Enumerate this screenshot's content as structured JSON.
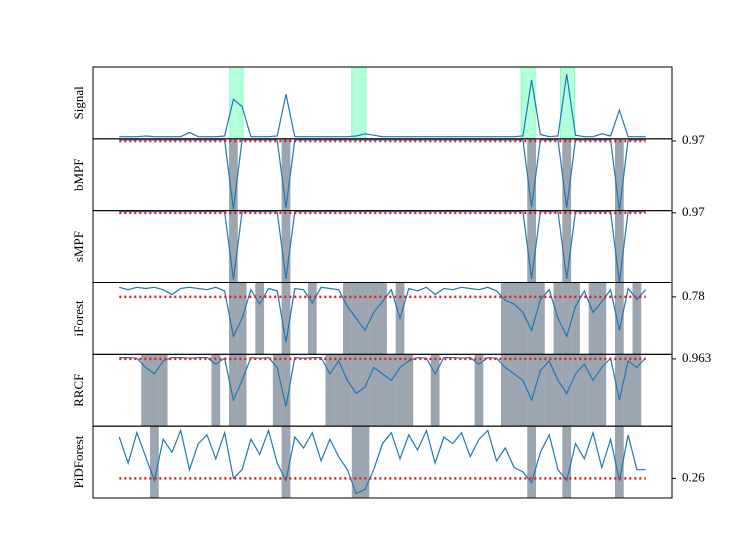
{
  "chart_data": [
    {
      "type": "line",
      "ylabel": "Signal",
      "color": "#1f77b4",
      "xlim": [
        -3,
        63
      ],
      "ylim": [
        0,
        1
      ],
      "yticks": [],
      "highlight_color": "#7fffc4",
      "highlight_spans": [
        [
          12.6,
          14.1
        ],
        [
          26.5,
          28.1
        ],
        [
          45.8,
          47.4
        ],
        [
          50.3,
          51.9
        ]
      ],
      "values": [
        0.03,
        0.03,
        0.03,
        0.04,
        0.03,
        0.03,
        0.03,
        0.03,
        0.09,
        0.03,
        0.03,
        0.03,
        0.04,
        0.55,
        0.45,
        0.03,
        0.03,
        0.03,
        0.04,
        0.62,
        0.03,
        0.03,
        0.03,
        0.03,
        0.03,
        0.03,
        0.03,
        0.04,
        0.07,
        0.05,
        0.03,
        0.03,
        0.03,
        0.03,
        0.03,
        0.03,
        0.03,
        0.03,
        0.03,
        0.03,
        0.03,
        0.03,
        0.03,
        0.03,
        0.03,
        0.03,
        0.04,
        0.82,
        0.06,
        0.03,
        0.04,
        0.9,
        0.05,
        0.03,
        0.03,
        0.07,
        0.04,
        0.4,
        0.03,
        0.03,
        0.03
      ]
    },
    {
      "type": "line",
      "ylabel": "bMPF",
      "color": "#1f77b4",
      "xlim": [
        -3,
        63
      ],
      "ylim": [
        0,
        1
      ],
      "yticks": [
        0.97
      ],
      "threshold_color": "#e41a1c",
      "shade_below_threshold": true,
      "values": [
        0.985,
        0.985,
        0.985,
        0.985,
        0.985,
        0.985,
        0.985,
        0.985,
        0.985,
        0.985,
        0.985,
        0.985,
        0.985,
        0.02,
        0.985,
        0.985,
        0.985,
        0.985,
        0.985,
        0.04,
        0.985,
        0.985,
        0.985,
        0.985,
        0.985,
        0.985,
        0.985,
        0.985,
        0.985,
        0.985,
        0.985,
        0.985,
        0.985,
        0.985,
        0.985,
        0.985,
        0.985,
        0.985,
        0.985,
        0.985,
        0.985,
        0.985,
        0.985,
        0.985,
        0.985,
        0.985,
        0.985,
        0.05,
        0.985,
        0.985,
        0.985,
        0.04,
        0.985,
        0.985,
        0.985,
        0.985,
        0.985,
        0.0,
        0.985,
        0.985,
        0.985
      ]
    },
    {
      "type": "line",
      "ylabel": "sMPF",
      "color": "#1f77b4",
      "xlim": [
        -3,
        63
      ],
      "ylim": [
        0,
        1
      ],
      "yticks": [
        0.97
      ],
      "threshold_color": "#e41a1c",
      "shade_below_threshold": true,
      "values": [
        0.985,
        0.985,
        0.985,
        0.985,
        0.985,
        0.985,
        0.985,
        0.985,
        0.985,
        0.985,
        0.985,
        0.985,
        0.985,
        0.04,
        0.985,
        0.985,
        0.985,
        0.985,
        0.985,
        0.05,
        0.985,
        0.985,
        0.985,
        0.985,
        0.985,
        0.985,
        0.985,
        0.985,
        0.985,
        0.985,
        0.985,
        0.985,
        0.985,
        0.985,
        0.985,
        0.985,
        0.985,
        0.985,
        0.985,
        0.985,
        0.985,
        0.985,
        0.985,
        0.985,
        0.985,
        0.985,
        0.985,
        0.05,
        0.985,
        0.985,
        0.985,
        0.05,
        0.985,
        0.985,
        0.985,
        0.985,
        0.985,
        0.0,
        0.985,
        0.985,
        0.985
      ]
    },
    {
      "type": "line",
      "ylabel": "iForest",
      "color": "#1f77b4",
      "xlim": [
        -3,
        63
      ],
      "ylim": [
        0.3,
        0.9
      ],
      "yticks": [
        0.78
      ],
      "threshold_color": "#e41a1c",
      "shade_below_threshold": true,
      "values": [
        0.86,
        0.84,
        0.86,
        0.85,
        0.86,
        0.84,
        0.8,
        0.85,
        0.86,
        0.85,
        0.84,
        0.86,
        0.83,
        0.45,
        0.6,
        0.84,
        0.72,
        0.85,
        0.83,
        0.4,
        0.85,
        0.84,
        0.73,
        0.86,
        0.85,
        0.84,
        0.7,
        0.6,
        0.5,
        0.65,
        0.74,
        0.84,
        0.6,
        0.85,
        0.83,
        0.86,
        0.8,
        0.85,
        0.84,
        0.86,
        0.85,
        0.84,
        0.86,
        0.83,
        0.75,
        0.72,
        0.65,
        0.5,
        0.76,
        0.84,
        0.6,
        0.45,
        0.7,
        0.83,
        0.65,
        0.74,
        0.84,
        0.5,
        0.85,
        0.76,
        0.84
      ]
    },
    {
      "type": "line",
      "ylabel": "RRCF",
      "color": "#1f77b4",
      "xlim": [
        -3,
        63
      ],
      "ylim": [
        0.86,
        0.97
      ],
      "yticks": [
        0.963
      ],
      "threshold_color": "#e41a1c",
      "shade_below_threshold": true,
      "values": [
        0.965,
        0.965,
        0.964,
        0.95,
        0.94,
        0.96,
        0.965,
        0.965,
        0.964,
        0.965,
        0.965,
        0.955,
        0.964,
        0.9,
        0.93,
        0.965,
        0.964,
        0.965,
        0.95,
        0.89,
        0.965,
        0.964,
        0.965,
        0.965,
        0.94,
        0.96,
        0.93,
        0.91,
        0.92,
        0.95,
        0.94,
        0.93,
        0.95,
        0.96,
        0.965,
        0.964,
        0.94,
        0.965,
        0.965,
        0.964,
        0.965,
        0.955,
        0.965,
        0.964,
        0.95,
        0.94,
        0.93,
        0.9,
        0.945,
        0.96,
        0.93,
        0.91,
        0.94,
        0.955,
        0.93,
        0.95,
        0.964,
        0.9,
        0.96,
        0.95,
        0.965
      ]
    },
    {
      "type": "line",
      "ylabel": "PiDForest",
      "color": "#1f77b4",
      "xlim": [
        -3,
        63
      ],
      "ylim": [
        0.17,
        0.5
      ],
      "yticks": [
        0.26
      ],
      "threshold_color": "#e41a1c",
      "shade_below_threshold": true,
      "values": [
        0.45,
        0.33,
        0.47,
        0.36,
        0.25,
        0.44,
        0.38,
        0.48,
        0.3,
        0.42,
        0.46,
        0.35,
        0.47,
        0.26,
        0.3,
        0.44,
        0.37,
        0.48,
        0.33,
        0.25,
        0.45,
        0.4,
        0.47,
        0.34,
        0.44,
        0.36,
        0.3,
        0.19,
        0.21,
        0.3,
        0.42,
        0.47,
        0.35,
        0.46,
        0.39,
        0.48,
        0.33,
        0.45,
        0.42,
        0.47,
        0.36,
        0.44,
        0.48,
        0.34,
        0.4,
        0.31,
        0.29,
        0.24,
        0.38,
        0.46,
        0.3,
        0.25,
        0.42,
        0.35,
        0.47,
        0.31,
        0.44,
        0.25,
        0.46,
        0.3,
        0.3
      ]
    }
  ]
}
